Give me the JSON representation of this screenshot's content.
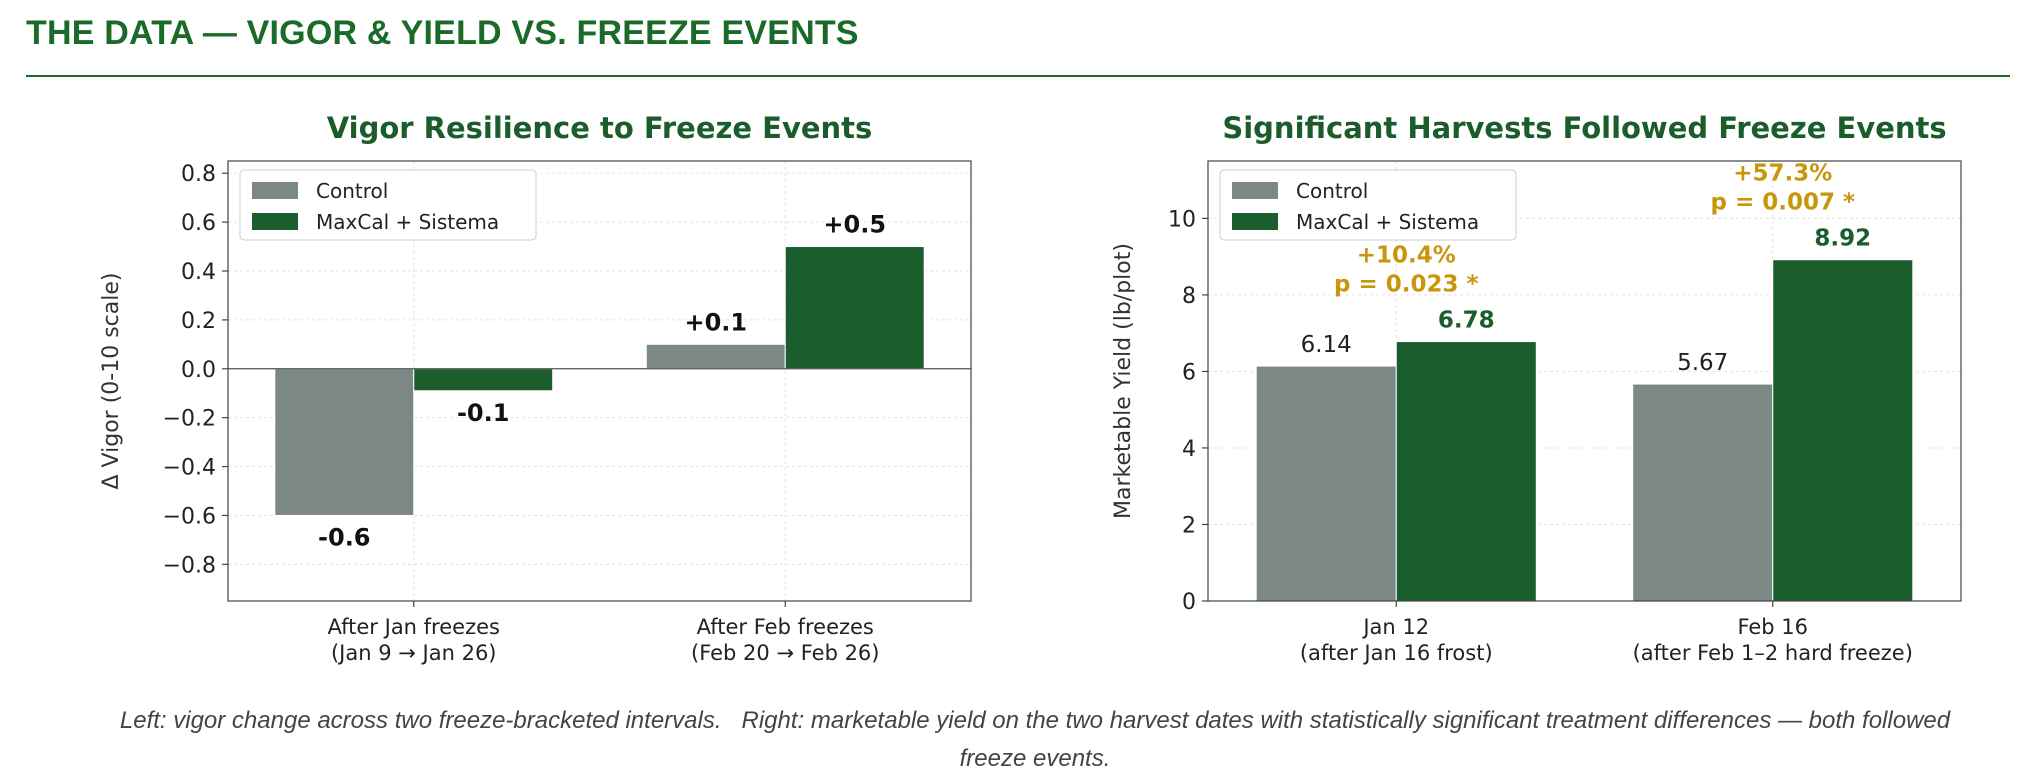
{
  "page": {
    "title": "THE DATA — VIGOR & YIELD VS. FREEZE EVENTS",
    "caption_line1": "Left: vigor change across two freeze-bracketed intervals.   Right: marketable yield on the two harvest dates with statistically significant treatment differences — both followed",
    "caption_line2": "freeze events."
  },
  "colors": {
    "control": "#7c8886",
    "treatment": "#1b5e2e",
    "title_green": "#1a5c2a",
    "annotation_gold": "#c8960c"
  },
  "chart_data": [
    {
      "type": "bar",
      "title": "Vigor Resilience to Freeze Events",
      "ylabel": "Δ Vigor (0-10 scale)",
      "xlabel": "",
      "ylim": [
        -0.95,
        0.85
      ],
      "yticks": [
        0.8,
        0.6,
        0.4,
        0.2,
        0.0,
        -0.2,
        -0.4,
        -0.6,
        -0.8
      ],
      "ytick_labels": [
        "0.8",
        "0.6",
        "0.4",
        "0.2",
        "0.0",
        "−0.2",
        "−0.4",
        "−0.6",
        "−0.8"
      ],
      "grid": true,
      "legend_position": "top-left",
      "categories": [
        [
          "After Jan freezes",
          "(Jan 9 → Jan 26)"
        ],
        [
          "After Feb freezes",
          "(Feb 20 → Feb 26)"
        ]
      ],
      "series": [
        {
          "name": "Control",
          "values": [
            -0.6,
            0.1
          ],
          "labels": [
            "-0.6",
            "+0.1"
          ]
        },
        {
          "name": "MaxCal + Sistema",
          "values": [
            -0.09,
            0.5
          ],
          "labels": [
            "-0.1",
            "+0.5"
          ]
        }
      ]
    },
    {
      "type": "bar",
      "title": "Significant Harvests Followed Freeze Events",
      "ylabel": "Marketable Yield (lb/plot)",
      "xlabel": "",
      "ylim": [
        0,
        11.5
      ],
      "yticks": [
        0,
        2,
        4,
        6,
        8,
        10
      ],
      "ytick_labels": [
        "0",
        "2",
        "4",
        "6",
        "8",
        "10"
      ],
      "grid": true,
      "legend_position": "top-left",
      "categories": [
        [
          "Jan 12",
          "(after Jan 16 frost)"
        ],
        [
          "Feb 16",
          "(after Feb 1–2 hard freeze)"
        ]
      ],
      "series": [
        {
          "name": "Control",
          "values": [
            6.14,
            5.67
          ],
          "labels": [
            "6.14",
            "5.67"
          ]
        },
        {
          "name": "MaxCal + Sistema",
          "values": [
            6.78,
            8.92
          ],
          "labels": [
            "6.78",
            "8.92"
          ]
        }
      ],
      "annotations": [
        {
          "category_index": 0,
          "lines": [
            "+10.4%",
            "p = 0.023 *"
          ]
        },
        {
          "category_index": 1,
          "lines": [
            "+57.3%",
            "p = 0.007 *"
          ]
        }
      ]
    }
  ]
}
